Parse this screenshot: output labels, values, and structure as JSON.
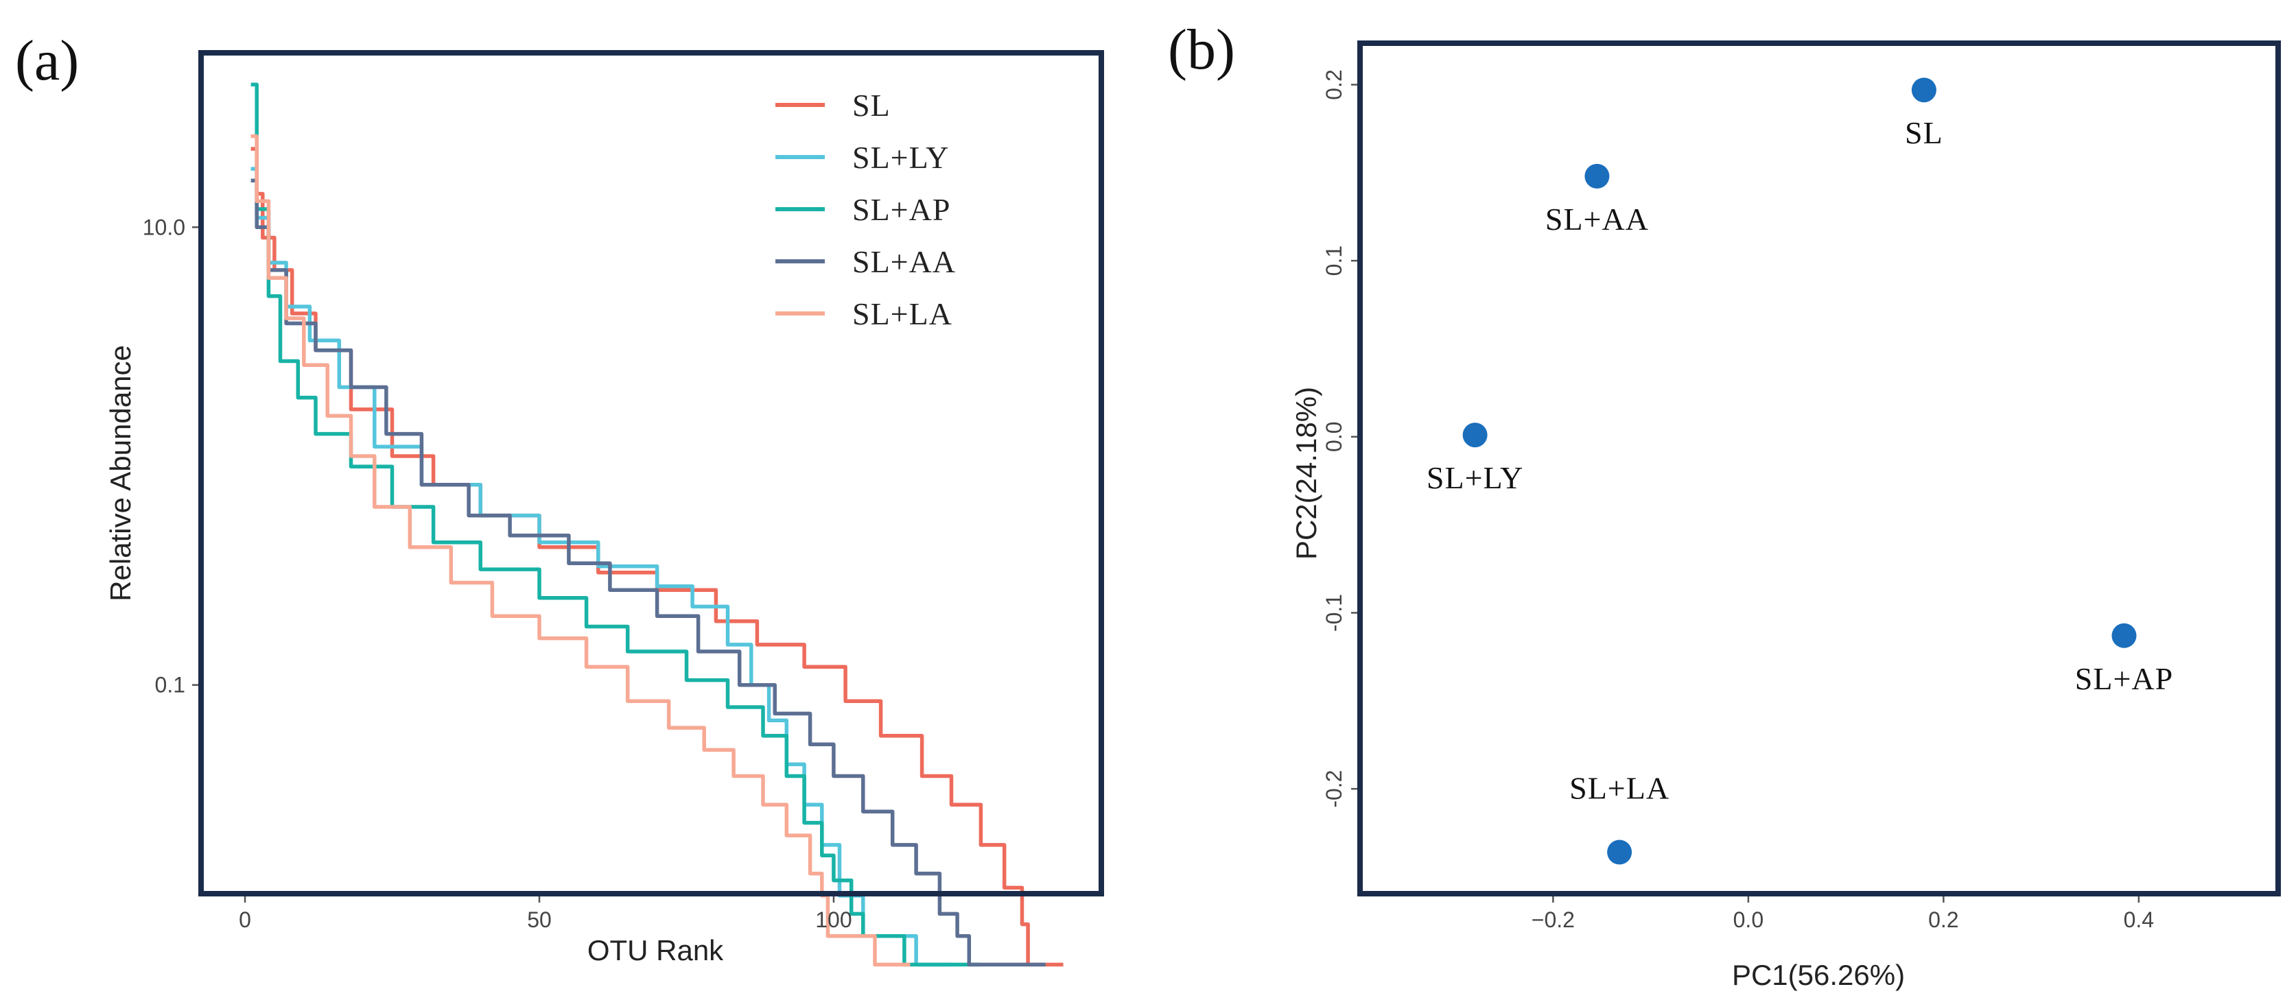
{
  "chart_data": [
    {
      "panel_label": "(a)",
      "type": "line",
      "xlabel": "OTU Rank",
      "ylabel": "Relative Abundance",
      "xlim": [
        -7,
        145
      ],
      "ylim_log10": [
        -1.9,
        1.75
      ],
      "y_scale": "log",
      "x_ticks": [
        {
          "value": 0,
          "label": "0"
        },
        {
          "value": 50,
          "label": "50"
        },
        {
          "value": 100,
          "label": "100"
        }
      ],
      "y_ticks": [
        {
          "value": 10.0,
          "label": "10.0"
        },
        {
          "value": 0.1,
          "label": "0.1"
        }
      ],
      "legend_position": "top-right",
      "series": [
        {
          "name": "SL",
          "color": "#ee6b5b",
          "points": [
            [
              1,
              22
            ],
            [
              2,
              14
            ],
            [
              3,
              9
            ],
            [
              5,
              6.5
            ],
            [
              8,
              4.2
            ],
            [
              12,
              2.9
            ],
            [
              18,
              1.6
            ],
            [
              25,
              1.0
            ],
            [
              32,
              0.75
            ],
            [
              40,
              0.55
            ],
            [
              50,
              0.4
            ],
            [
              60,
              0.31
            ],
            [
              70,
              0.26
            ],
            [
              80,
              0.19
            ],
            [
              87,
              0.15
            ],
            [
              95,
              0.12
            ],
            [
              102,
              0.085
            ],
            [
              108,
              0.06
            ],
            [
              115,
              0.04
            ],
            [
              120,
              0.03
            ],
            [
              125,
              0.02
            ],
            [
              129,
              0.013
            ],
            [
              132,
              0.009
            ],
            [
              133,
              0.006
            ],
            [
              139,
              0.006
            ]
          ]
        },
        {
          "name": "SL+LY",
          "color": "#55c5dc",
          "points": [
            [
              1,
              18
            ],
            [
              2,
              11
            ],
            [
              4,
              7
            ],
            [
              7,
              4.5
            ],
            [
              11,
              3.2
            ],
            [
              16,
              2.0
            ],
            [
              22,
              1.1
            ],
            [
              30,
              0.75
            ],
            [
              40,
              0.55
            ],
            [
              50,
              0.42
            ],
            [
              60,
              0.33
            ],
            [
              70,
              0.27
            ],
            [
              76,
              0.22
            ],
            [
              82,
              0.15
            ],
            [
              86,
              0.1
            ],
            [
              89,
              0.07
            ],
            [
              92,
              0.045
            ],
            [
              95,
              0.03
            ],
            [
              98,
              0.02
            ],
            [
              101,
              0.012
            ],
            [
              105,
              0.008
            ],
            [
              112,
              0.008
            ],
            [
              114,
              0.006
            ],
            [
              120,
              0.006
            ]
          ]
        },
        {
          "name": "SL+AP",
          "color": "#18b3a6",
          "points": [
            [
              1,
              42
            ],
            [
              2,
              12
            ],
            [
              4,
              5
            ],
            [
              6,
              2.6
            ],
            [
              9,
              1.8
            ],
            [
              12,
              1.25
            ],
            [
              18,
              0.9
            ],
            [
              25,
              0.6
            ],
            [
              32,
              0.42
            ],
            [
              40,
              0.32
            ],
            [
              50,
              0.24
            ],
            [
              58,
              0.18
            ],
            [
              65,
              0.14
            ],
            [
              75,
              0.105
            ],
            [
              82,
              0.08
            ],
            [
              88,
              0.06
            ],
            [
              92,
              0.04
            ],
            [
              95,
              0.025
            ],
            [
              98,
              0.018
            ],
            [
              100,
              0.014
            ],
            [
              103,
              0.01
            ],
            [
              105,
              0.008
            ],
            [
              110,
              0.008
            ],
            [
              112,
              0.006
            ],
            [
              125,
              0.006
            ]
          ]
        },
        {
          "name": "SL+AA",
          "color": "#5c6f93",
          "points": [
            [
              1,
              16
            ],
            [
              2,
              10
            ],
            [
              4,
              6.5
            ],
            [
              7,
              3.8
            ],
            [
              12,
              2.9
            ],
            [
              18,
              2.0
            ],
            [
              24,
              1.25
            ],
            [
              30,
              0.75
            ],
            [
              38,
              0.55
            ],
            [
              45,
              0.45
            ],
            [
              55,
              0.34
            ],
            [
              62,
              0.26
            ],
            [
              70,
              0.2
            ],
            [
              77,
              0.14
            ],
            [
              84,
              0.1
            ],
            [
              90,
              0.075
            ],
            [
              96,
              0.055
            ],
            [
              100,
              0.04
            ],
            [
              105,
              0.028
            ],
            [
              110,
              0.02
            ],
            [
              114,
              0.015
            ],
            [
              118,
              0.01
            ],
            [
              121,
              0.008
            ],
            [
              123,
              0.006
            ],
            [
              136,
              0.006
            ]
          ]
        },
        {
          "name": "SL+LA",
          "color": "#f7a994",
          "points": [
            [
              1,
              25
            ],
            [
              2,
              13
            ],
            [
              4,
              6
            ],
            [
              7,
              4
            ],
            [
              10,
              2.5
            ],
            [
              14,
              1.5
            ],
            [
              18,
              1.0
            ],
            [
              22,
              0.6
            ],
            [
              28,
              0.4
            ],
            [
              35,
              0.28
            ],
            [
              42,
              0.2
            ],
            [
              50,
              0.16
            ],
            [
              58,
              0.12
            ],
            [
              65,
              0.085
            ],
            [
              72,
              0.065
            ],
            [
              78,
              0.052
            ],
            [
              83,
              0.04
            ],
            [
              88,
              0.03
            ],
            [
              92,
              0.022
            ],
            [
              96,
              0.015
            ],
            [
              98,
              0.012
            ],
            [
              99,
              0.008
            ],
            [
              104,
              0.008
            ],
            [
              107,
              0.006
            ],
            [
              113,
              0.006
            ]
          ]
        }
      ]
    },
    {
      "panel_label": "(b)",
      "type": "scatter",
      "xlabel": "PC1(56.26%)",
      "ylabel": "PC2(24.18%)",
      "xlim": [
        -0.395,
        0.54
      ],
      "ylim": [
        -0.258,
        0.222
      ],
      "x_ticks": [
        {
          "value": -0.2,
          "label": "−0.2"
        },
        {
          "value": 0.0,
          "label": "0.0"
        },
        {
          "value": 0.2,
          "label": "0.2"
        },
        {
          "value": 0.4,
          "label": "0.4"
        }
      ],
      "y_ticks": [
        {
          "value": 0.2,
          "label": "0.2"
        },
        {
          "value": 0.1,
          "label": "0.1"
        },
        {
          "value": 0.0,
          "label": "0.0"
        },
        {
          "value": -0.1,
          "label": "-0.1"
        },
        {
          "value": -0.2,
          "label": "-0.2"
        }
      ],
      "point_color": "#1a6ebc",
      "points": [
        {
          "label": "SL",
          "x": 0.18,
          "y": 0.197,
          "label_position": "below"
        },
        {
          "label": "SL+AA",
          "x": -0.155,
          "y": 0.148,
          "label_position": "below"
        },
        {
          "label": "SL+LY",
          "x": -0.28,
          "y": 0.001,
          "label_position": "below"
        },
        {
          "label": "SL+AP",
          "x": 0.385,
          "y": -0.113,
          "label_position": "below"
        },
        {
          "label": "SL+LA",
          "x": -0.132,
          "y": -0.236,
          "label_position": "above"
        }
      ]
    }
  ]
}
